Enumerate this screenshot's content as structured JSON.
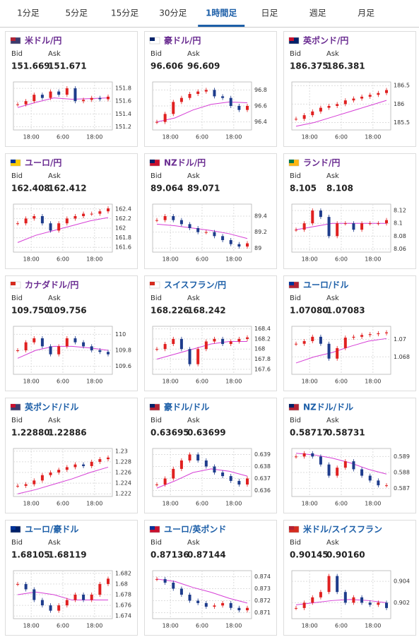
{
  "tabs": [
    "1分足",
    "5分足",
    "15分足",
    "30分足",
    "1時間足",
    "日足",
    "週足",
    "月足"
  ],
  "active_tab": 4,
  "bid_label": "Bid",
  "ask_label": "Ask",
  "time_labels": [
    "18:00",
    "6:00",
    "18:00"
  ],
  "cards": [
    {
      "name": "米ドル/円",
      "name_color": "#6a2c91",
      "bid": "151.669",
      "ask": "151.671",
      "ylim": [
        151.15,
        151.9
      ],
      "yticks": [
        151.8,
        151.6,
        151.4,
        151.2
      ],
      "closes": [
        151.55,
        151.6,
        151.7,
        151.65,
        151.75,
        151.7,
        151.8,
        151.6,
        151.62,
        151.65,
        151.63,
        151.67
      ],
      "ma": [
        151.5,
        151.58,
        151.65,
        151.63,
        151.64,
        151.65
      ]
    },
    {
      "name": "豪ドル/円",
      "name_color": "#6a2c91",
      "bid": "96.606",
      "ask": "96.609",
      "ylim": [
        96.3,
        96.9
      ],
      "yticks": [
        96.8,
        96.6,
        96.4
      ],
      "closes": [
        96.4,
        96.5,
        96.65,
        96.7,
        96.75,
        96.78,
        96.8,
        96.72,
        96.7,
        96.6,
        96.55,
        96.6
      ],
      "ma": [
        96.4,
        96.45,
        96.55,
        96.62,
        96.65,
        96.64
      ]
    },
    {
      "name": "英ポンド/円",
      "name_color": "#6a2c91",
      "bid": "186.375",
      "ask": "186.381",
      "ylim": [
        185.3,
        186.6
      ],
      "yticks": [
        186.5,
        186,
        185.5
      ],
      "closes": [
        185.6,
        185.7,
        185.8,
        185.9,
        185.95,
        186.0,
        186.1,
        186.15,
        186.2,
        186.25,
        186.3,
        186.38
      ],
      "ma": [
        185.4,
        185.5,
        185.65,
        185.8,
        185.95,
        186.1
      ]
    },
    {
      "name": "ユーロ/円",
      "name_color": "#6a2c91",
      "bid": "162.408",
      "ask": "162.412",
      "ylim": [
        161.5,
        162.5
      ],
      "yticks": [
        162.4,
        162.2,
        162,
        161.8,
        161.6
      ],
      "closes": [
        162.1,
        162.2,
        162.25,
        162.1,
        161.95,
        162.1,
        162.2,
        162.25,
        162.3,
        162.3,
        162.35,
        162.41
      ],
      "ma": [
        161.7,
        161.85,
        161.95,
        162.05,
        162.15,
        162.22
      ]
    },
    {
      "name": "NZドル/円",
      "name_color": "#6a2c91",
      "bid": "89.064",
      "ask": "89.071",
      "ylim": [
        88.95,
        89.55
      ],
      "yticks": [
        89.4,
        89.2,
        89
      ],
      "closes": [
        89.35,
        89.4,
        89.35,
        89.3,
        89.25,
        89.2,
        89.2,
        89.15,
        89.1,
        89.05,
        89.02,
        89.06
      ],
      "ma": [
        89.3,
        89.28,
        89.25,
        89.22,
        89.18,
        89.12
      ]
    },
    {
      "name": "ランド/円",
      "name_color": "#6a2c91",
      "bid": "8.105",
      "ask": "8.108",
      "ylim": [
        8.055,
        8.13
      ],
      "yticks": [
        8.12,
        8.1,
        8.08,
        8.06
      ],
      "closes": [
        8.09,
        8.1,
        8.12,
        8.11,
        8.08,
        8.1,
        8.1,
        8.09,
        8.1,
        8.1,
        8.1,
        8.105
      ],
      "ma": [
        8.09,
        8.095,
        8.1,
        8.1,
        8.1,
        8.1
      ]
    },
    {
      "name": "カナダドル/円",
      "name_color": "#6a2c91",
      "bid": "109.750",
      "ask": "109.756",
      "ylim": [
        109.5,
        110.1
      ],
      "yticks": [
        110,
        109.8,
        109.6
      ],
      "closes": [
        109.8,
        109.9,
        109.95,
        109.85,
        109.75,
        109.85,
        109.95,
        109.9,
        109.85,
        109.8,
        109.78,
        109.75
      ],
      "ma": [
        109.7,
        109.8,
        109.85,
        109.85,
        109.83,
        109.8
      ]
    },
    {
      "name": "スイスフラン/円",
      "name_color": "#1d5fa8",
      "bid": "168.226",
      "ask": "168.242",
      "ylim": [
        167.5,
        168.45
      ],
      "yticks": [
        168.4,
        168.2,
        168,
        167.8,
        167.6
      ],
      "closes": [
        168.0,
        168.1,
        168.2,
        168.0,
        167.7,
        168.0,
        168.15,
        168.2,
        168.1,
        168.15,
        168.2,
        168.23
      ],
      "ma": [
        167.8,
        167.9,
        168.0,
        168.1,
        168.15,
        168.15
      ]
    },
    {
      "name": "ユーロ/ドル",
      "name_color": "#1d5fa8",
      "bid": "1.07080",
      "ask": "1.07083",
      "ylim": [
        1.066,
        1.0715
      ],
      "yticks": [
        1.07,
        1.068
      ],
      "closes": [
        1.0695,
        1.0698,
        1.0703,
        1.0695,
        1.0678,
        1.069,
        1.0702,
        1.0703,
        1.0705,
        1.0706,
        1.0707,
        1.0708
      ],
      "ma": [
        1.0673,
        1.068,
        1.0685,
        1.0692,
        1.0698,
        1.0701
      ]
    },
    {
      "name": "英ポンド/ドル",
      "name_color": "#1d5fa8",
      "bid": "1.22880",
      "ask": "1.22886",
      "ylim": [
        1.2215,
        1.2305
      ],
      "yticks": [
        1.23,
        1.228,
        1.226,
        1.224,
        1.222
      ],
      "closes": [
        1.2235,
        1.2238,
        1.2245,
        1.2255,
        1.226,
        1.2265,
        1.227,
        1.2275,
        1.2272,
        1.228,
        1.2285,
        1.2288
      ],
      "ma": [
        1.222,
        1.2228,
        1.2238,
        1.2248,
        1.226,
        1.227
      ]
    },
    {
      "name": "豪ドル/ドル",
      "name_color": "#1d5fa8",
      "bid": "0.63695",
      "ask": "0.63699",
      "ylim": [
        0.6355,
        0.6395
      ],
      "yticks": [
        0.639,
        0.638,
        0.637,
        0.636
      ],
      "closes": [
        0.6365,
        0.637,
        0.6378,
        0.6385,
        0.639,
        0.6385,
        0.638,
        0.6375,
        0.6372,
        0.6368,
        0.6365,
        0.637
      ],
      "ma": [
        0.6362,
        0.6368,
        0.6375,
        0.6378,
        0.6376,
        0.6372
      ]
    },
    {
      "name": "NZドル/ドル",
      "name_color": "#1d5fa8",
      "bid": "0.58717",
      "ask": "0.58731",
      "ylim": [
        0.5865,
        0.5895
      ],
      "yticks": [
        0.589,
        0.588,
        0.587
      ],
      "closes": [
        0.589,
        0.5892,
        0.589,
        0.5885,
        0.5878,
        0.5883,
        0.5887,
        0.5882,
        0.5878,
        0.5875,
        0.5872,
        0.5872
      ],
      "ma": [
        0.5892,
        0.5891,
        0.5889,
        0.5886,
        0.5882,
        0.5879
      ]
    },
    {
      "name": "ユーロ/豪ドル",
      "name_color": "#1d5fa8",
      "bid": "1.68105",
      "ask": "1.68119",
      "ylim": [
        1.6735,
        1.6825
      ],
      "yticks": [
        1.682,
        1.68,
        1.678,
        1.676,
        1.674
      ],
      "closes": [
        1.68,
        1.679,
        1.677,
        1.676,
        1.675,
        1.676,
        1.677,
        1.678,
        1.677,
        1.678,
        1.68,
        1.681
      ],
      "ma": [
        1.678,
        1.6785,
        1.678,
        1.677,
        1.677,
        1.677
      ]
    },
    {
      "name": "ユーロ/英ポンド",
      "name_color": "#1d5fa8",
      "bid": "0.87136",
      "ask": "0.87144",
      "ylim": [
        0.8705,
        0.8745
      ],
      "yticks": [
        0.874,
        0.873,
        0.872,
        0.871
      ],
      "closes": [
        0.8738,
        0.8735,
        0.873,
        0.8725,
        0.872,
        0.8718,
        0.8715,
        0.8716,
        0.8718,
        0.8714,
        0.8712,
        0.8714
      ],
      "ma": [
        0.8738,
        0.8736,
        0.8731,
        0.8727,
        0.8722,
        0.8718
      ]
    },
    {
      "name": "米ドル/スイスフラン",
      "name_color": "#1d5fa8",
      "bid": "0.90145",
      "ask": "0.90160",
      "ylim": [
        0.9005,
        0.905
      ],
      "yticks": [
        0.904,
        0.902
      ],
      "closes": [
        0.9015,
        0.902,
        0.9025,
        0.903,
        0.9045,
        0.903,
        0.902,
        0.9025,
        0.902,
        0.9018,
        0.902,
        0.9015
      ],
      "ma": [
        0.9018,
        0.902,
        0.9022,
        0.9023,
        0.9022,
        0.902
      ]
    }
  ]
}
